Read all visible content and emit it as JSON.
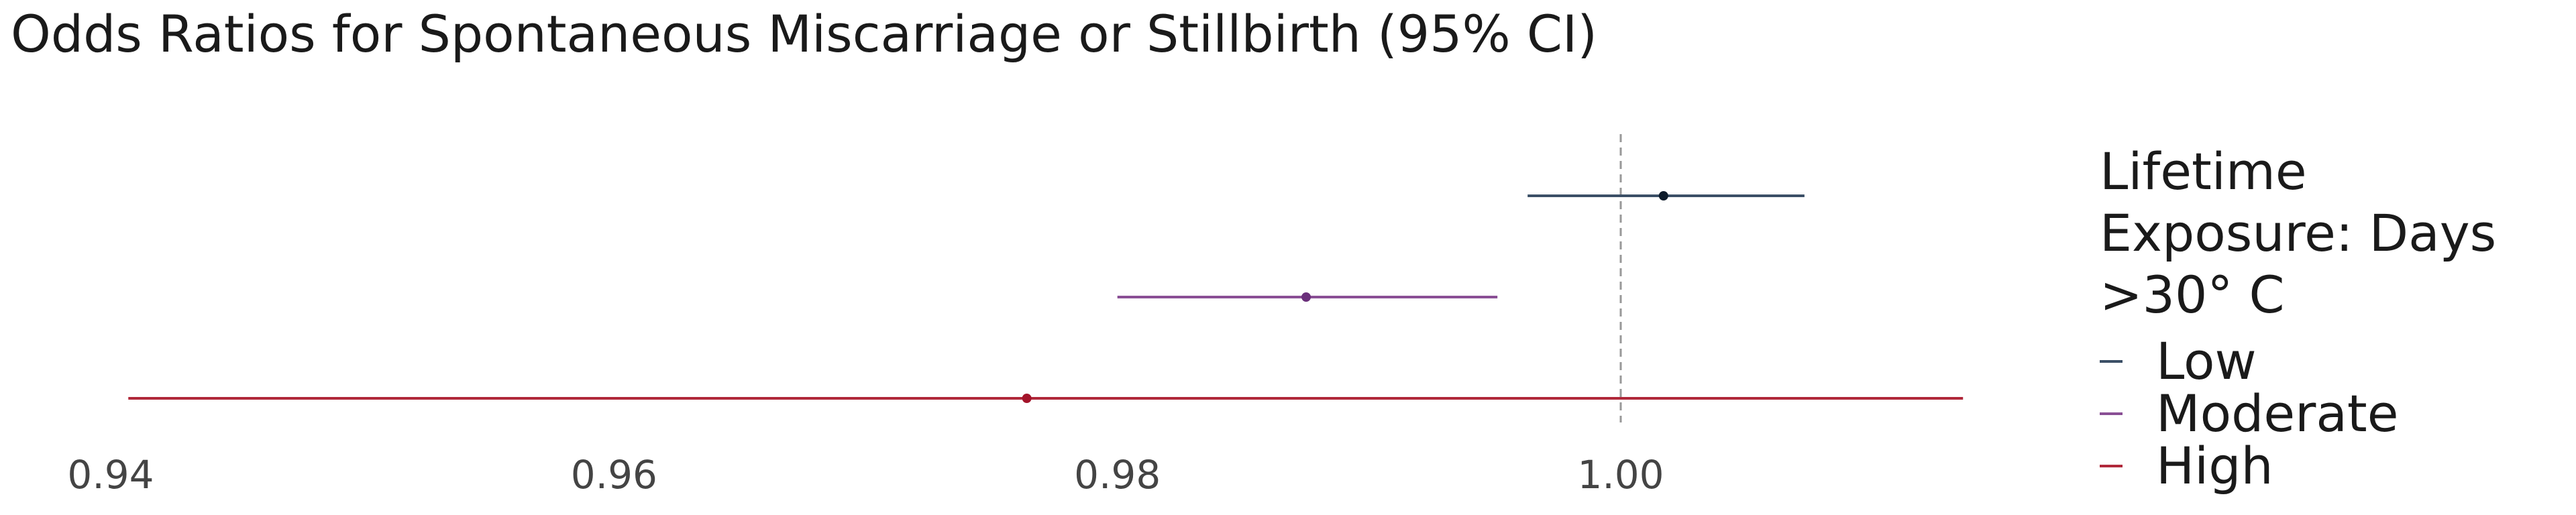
{
  "chart_data": {
    "type": "forest",
    "title": "Odds Ratios for Spontaneous Miscarriage or Stillbirth (95% CI)",
    "xlabel": "",
    "ylabel": "",
    "xlim": [
      0.9396,
      1.0145
    ],
    "x_ticks": [
      0.94,
      0.96,
      0.98,
      1.0
    ],
    "x_tick_labels": [
      "0.94",
      "0.96",
      "0.98",
      "1.00"
    ],
    "reference_line": 1.0,
    "grid": false,
    "legend": {
      "title": "Lifetime Exposure: Days >30° C",
      "placement": "right"
    },
    "series": [
      {
        "name": "Low",
        "estimate": 1.0017,
        "lower": 0.9963,
        "upper": 1.0073,
        "color": "#3b4f66",
        "point_color": "#0d1b2a"
      },
      {
        "name": "Moderate",
        "estimate": 0.9875,
        "lower": 0.98,
        "upper": 0.9951,
        "color": "#8a4f95",
        "point_color": "#6a2f7a"
      },
      {
        "name": "High",
        "estimate": 0.9764,
        "lower": 0.9407,
        "upper": 1.0136,
        "color": "#b0283a",
        "point_color": "#a3142a"
      }
    ]
  }
}
